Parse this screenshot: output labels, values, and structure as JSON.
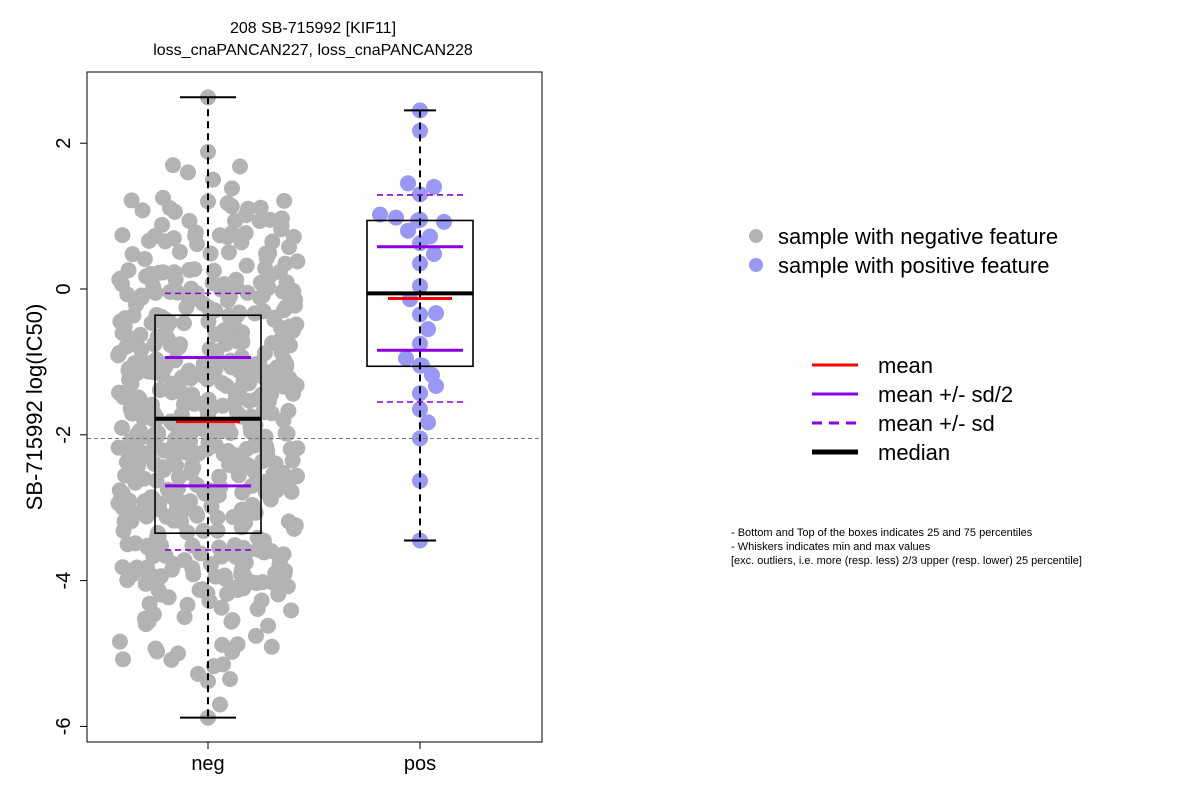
{
  "chart_data": {
    "type": "box",
    "title_lines": [
      "208 SB-715992 [KIF11]",
      "loss_cnaPANCAN227, loss_cnaPANCAN228"
    ],
    "ylabel": "SB-715992 log(IC50)",
    "xlabel": "",
    "ylim": [
      -6.2,
      2.95
    ],
    "yticks": [
      -6,
      -4,
      -2,
      0,
      2
    ],
    "ytick_labels": [
      "-6",
      "-4",
      "-2",
      "0",
      "2"
    ],
    "categories": [
      "neg",
      "pos"
    ],
    "reference_line_y": -2.05,
    "groups": [
      {
        "name": "neg",
        "color": "#b3b3b3",
        "n_points": 560,
        "whisker_low": -5.88,
        "q1": -3.35,
        "median": -1.78,
        "q3": -0.36,
        "whisker_high": 2.63,
        "mean": -1.82,
        "mean_minus_half_sd": -2.7,
        "mean_plus_half_sd": -0.94,
        "mean_minus_sd": -3.58,
        "mean_plus_sd": -0.06,
        "points_outline": [
          2.63,
          1.88,
          1.7,
          1.68,
          1.6,
          1.5,
          1.38,
          1.25,
          1.2,
          1.1,
          -5.0,
          -5.15,
          -5.28,
          -5.35,
          -5.38,
          -5.7,
          -5.88
        ]
      },
      {
        "name": "pos",
        "color": "#9999f5",
        "whisker_low": -3.45,
        "q1": -1.06,
        "median": -0.06,
        "q3": 0.94,
        "whisker_high": 2.45,
        "mean": -0.13,
        "mean_minus_half_sd": -0.84,
        "mean_plus_half_sd": 0.58,
        "mean_minus_sd": -1.55,
        "mean_plus_sd": 1.29,
        "points": [
          2.45,
          2.17,
          1.45,
          1.4,
          1.3,
          1.02,
          0.98,
          0.95,
          0.94,
          0.92,
          0.8,
          0.72,
          0.63,
          0.48,
          0.35,
          0.04,
          -0.14,
          -0.35,
          -0.33,
          -0.55,
          -0.75,
          -0.95,
          -1.05,
          -1.05,
          -1.18,
          -1.33,
          -1.43,
          -1.65,
          -1.83,
          -2.05,
          -2.63,
          -3.45
        ]
      }
    ],
    "legend_points": [
      {
        "label": "sample with negative feature",
        "color": "#b3b3b3"
      },
      {
        "label": "sample with positive feature",
        "color": "#9999f5"
      }
    ],
    "legend_lines": [
      {
        "label": "mean",
        "color": "#ff0000",
        "style": "solid"
      },
      {
        "label": "mean +/- sd/2",
        "color": "#8b00e0",
        "style": "solid"
      },
      {
        "label": "mean +/- sd",
        "color": "#8b00e0",
        "style": "dashed"
      },
      {
        "label": "median",
        "color": "#000000",
        "style": "thick"
      }
    ],
    "notes": [
      "- Bottom and Top of the boxes indicates 25 and 75 percentiles",
      "- Whiskers indicates min and max values",
      "[exc. outliers, i.e. more (resp. less) 2/3 upper (resp. lower) 25 percentile]"
    ]
  }
}
